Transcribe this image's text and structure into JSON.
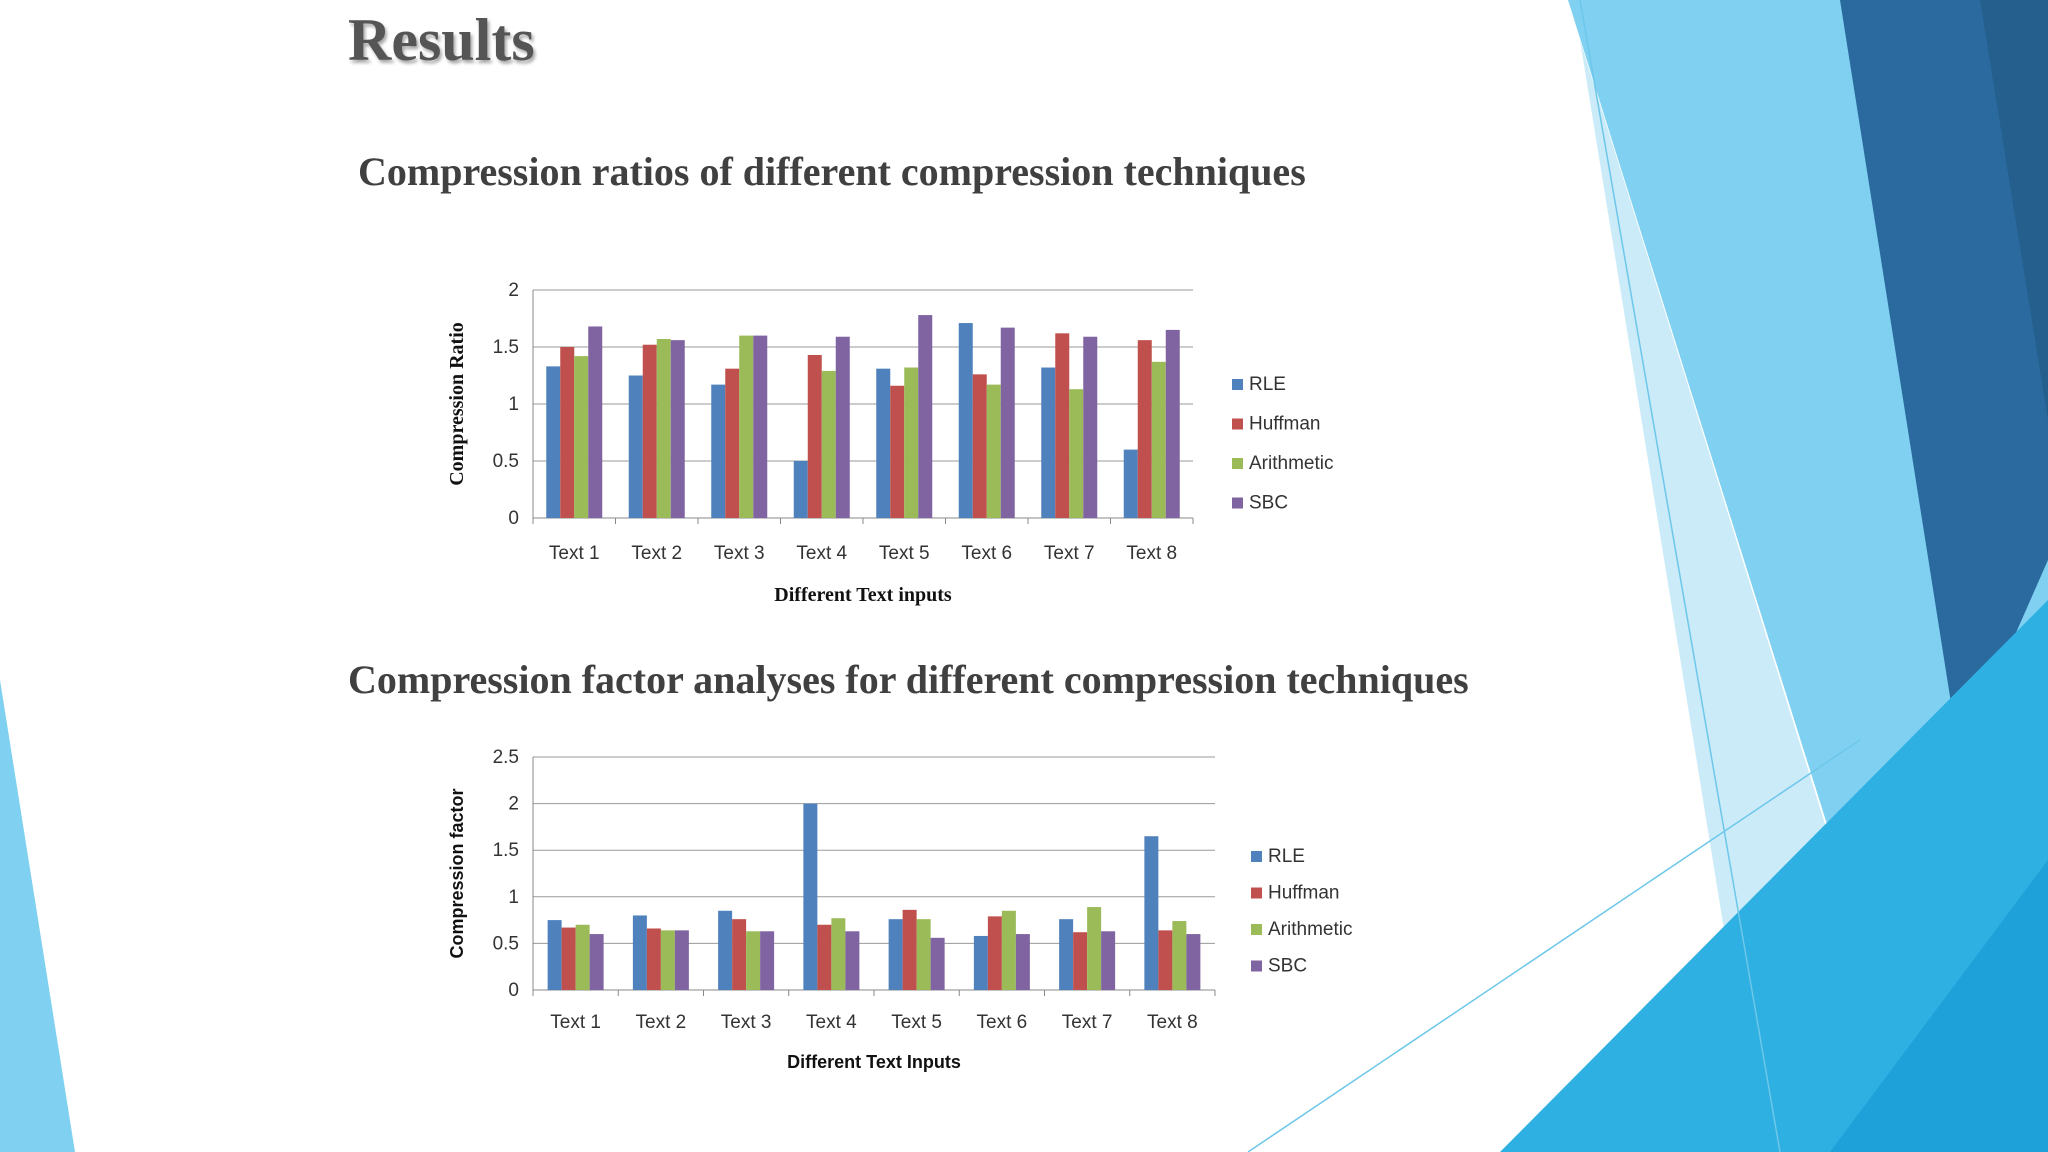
{
  "slide": {
    "title": "Results",
    "colors": {
      "dark_blue": "#2a6a9e",
      "mid_blue": "#2fb0e2",
      "light_blue": "#80d1f1",
      "pale_blue": "#c7e9f8"
    }
  },
  "series_colors": {
    "RLE": "#4f81bd",
    "Huffman": "#c0504d",
    "Arithmetic": "#9bbb59",
    "SBC": "#8064a2"
  },
  "chart_data": [
    {
      "type": "bar",
      "title": "Compression ratios of different compression techniques",
      "xlabel": "Different  Text inputs",
      "ylabel": "Compression Ratio",
      "ylim": [
        0,
        2
      ],
      "yticks": [
        "0",
        "0.5",
        "1",
        "1.5",
        "2"
      ],
      "grid": true,
      "legend_position": "right",
      "categories": [
        "Text 1",
        "Text 2",
        "Text 3",
        "Text 4",
        "Text 5",
        "Text 6",
        "Text 7",
        "Text 8"
      ],
      "series": [
        {
          "name": "RLE",
          "values": [
            1.33,
            1.25,
            1.17,
            0.5,
            1.31,
            1.71,
            1.32,
            0.6
          ]
        },
        {
          "name": "Huffman",
          "values": [
            1.5,
            1.52,
            1.31,
            1.43,
            1.16,
            1.26,
            1.62,
            1.56
          ]
        },
        {
          "name": "Arithmetic",
          "values": [
            1.42,
            1.57,
            1.6,
            1.29,
            1.32,
            1.17,
            1.13,
            1.37
          ]
        },
        {
          "name": "SBC",
          "values": [
            1.68,
            1.56,
            1.6,
            1.59,
            1.78,
            1.67,
            1.59,
            1.65
          ]
        }
      ]
    },
    {
      "type": "bar",
      "title": "Compression factor analyses for different compression  techniques",
      "xlabel": "Different Text Inputs",
      "ylabel": "Compression factor",
      "ylim": [
        0,
        2.5
      ],
      "yticks": [
        "0",
        "0.5",
        "1",
        "1.5",
        "2",
        "2.5"
      ],
      "grid": true,
      "legend_position": "right",
      "categories": [
        "Text 1",
        "Text 2",
        "Text 3",
        "Text 4",
        "Text 5",
        "Text 6",
        "Text 7",
        "Text 8"
      ],
      "series": [
        {
          "name": "RLE",
          "values": [
            0.75,
            0.8,
            0.85,
            2.0,
            0.76,
            0.58,
            0.76,
            1.65
          ]
        },
        {
          "name": "Huffman",
          "values": [
            0.67,
            0.66,
            0.76,
            0.7,
            0.86,
            0.79,
            0.62,
            0.64
          ]
        },
        {
          "name": "Arithmetic",
          "values": [
            0.7,
            0.64,
            0.63,
            0.77,
            0.76,
            0.85,
            0.89,
            0.74
          ]
        },
        {
          "name": "SBC",
          "values": [
            0.6,
            0.64,
            0.63,
            0.63,
            0.56,
            0.6,
            0.63,
            0.6
          ]
        }
      ]
    }
  ]
}
